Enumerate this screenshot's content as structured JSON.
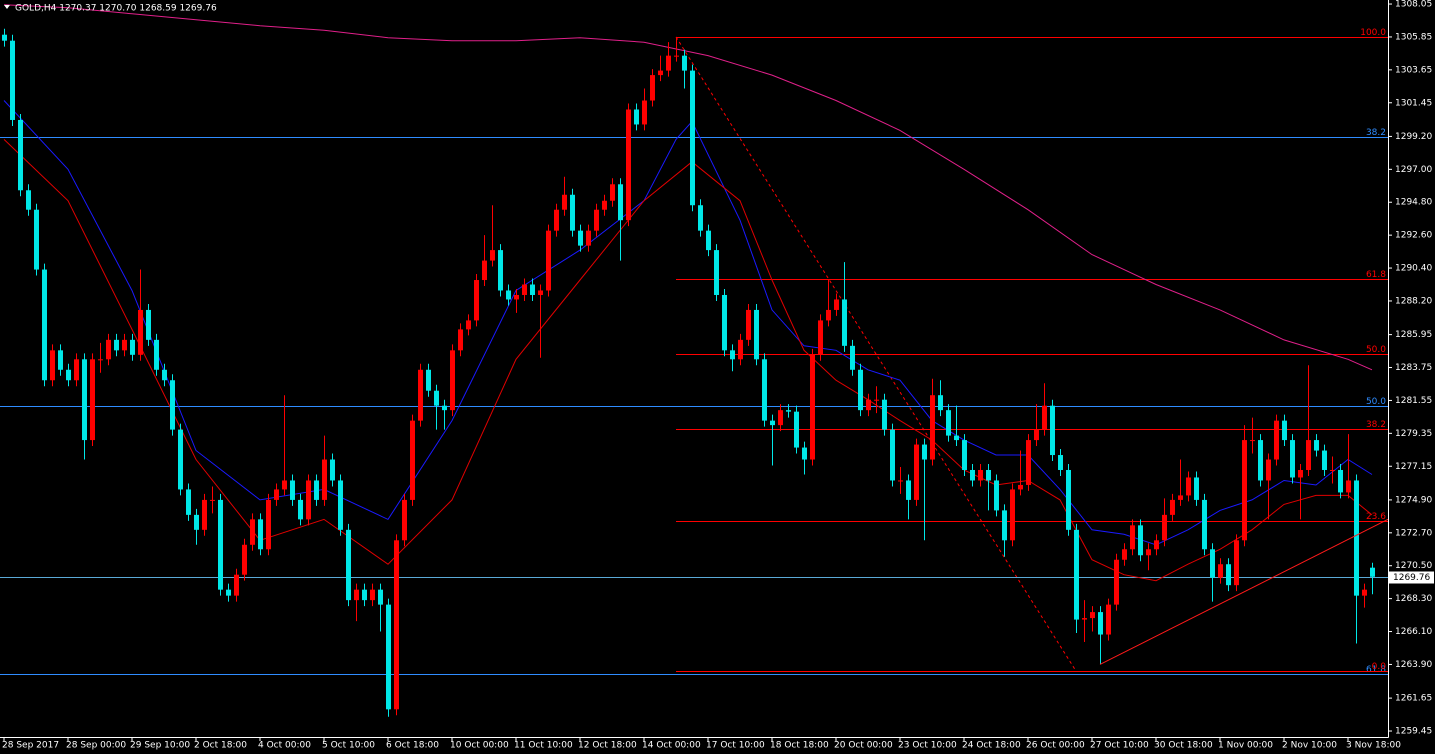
{
  "chart_data": {
    "type": "candlestick",
    "title": "GOLD,H4  1270.37 1270.70 1268.59 1269.76",
    "categories": [
      "28 Sep 2017",
      null,
      null,
      null,
      null,
      null,
      null,
      null,
      "28 Sep 00:00",
      null,
      null,
      null,
      null,
      null,
      null,
      null,
      "29 Sep 10:00",
      null,
      null,
      null,
      null,
      null,
      null,
      null,
      "2 Oct 18:00",
      null,
      null,
      null,
      null,
      null,
      null,
      null,
      "4 Oct 00:00",
      null,
      null,
      null,
      null,
      null,
      null,
      null,
      "5 Oct 10:00",
      null,
      null,
      null,
      null,
      null,
      null,
      null,
      "6 Oct 18:00",
      null,
      null,
      null,
      null,
      null,
      null,
      null,
      "10 Oct 00:00",
      null,
      null,
      null,
      null,
      null,
      null,
      null,
      "11 Oct 10:00",
      null,
      null,
      null,
      null,
      null,
      null,
      null,
      "12 Oct 18:00",
      null,
      null,
      null,
      null,
      null,
      null,
      null,
      "14 Oct 00:00",
      null,
      null,
      null,
      null,
      null,
      null,
      null,
      "17 Oct 10:00",
      null,
      null,
      null,
      null,
      null,
      null,
      null,
      "18 Oct 18:00",
      null,
      null,
      null,
      null,
      null,
      null,
      null,
      "20 Oct 00:00",
      null,
      null,
      null,
      null,
      null,
      null,
      null,
      "23 Oct 10:00",
      null,
      null,
      null,
      null,
      null,
      null,
      null,
      "24 Oct 18:00",
      null,
      null,
      null,
      null,
      null,
      null,
      null,
      "26 Oct 00:00",
      null,
      null,
      null,
      null,
      null,
      null,
      null,
      "27 Oct 10:00",
      null,
      null,
      null,
      null,
      null,
      null,
      null,
      "30 Oct 18:00",
      null,
      null,
      null,
      null,
      null,
      null,
      null,
      "1 Nov 00:00",
      null,
      null,
      null,
      null,
      null,
      null,
      null,
      "2 Nov 10:00",
      null,
      null,
      null,
      null,
      null,
      null,
      null,
      "3 Nov 18:00",
      null,
      null,
      null
    ],
    "open": [
      1306.0,
      1305.6,
      1300.3,
      1295.6,
      1294.3,
      1290.3,
      1282.9,
      1284.9,
      1283.6,
      1282.9,
      1284.3,
      1278.9,
      1284.3,
      1284.3,
      1285.6,
      1284.9,
      1285.6,
      1284.6,
      1287.6,
      1285.6,
      1283.6,
      1282.9,
      1279.6,
      1275.6,
      1273.9,
      1272.9,
      1274.9,
      1274.9,
      1268.9,
      1268.5,
      1269.9,
      1271.9,
      1273.6,
      1271.6,
      1274.9,
      1275.6,
      1276.2,
      1274.9,
      1273.6,
      1276.2,
      1274.9,
      1277.6,
      1276.2,
      1272.9,
      1268.2,
      1268.9,
      1268.2,
      1268.9,
      1267.9,
      1260.9,
      1272.2,
      1274.9,
      1280.2,
      1283.6,
      1282.2,
      1281.2,
      1280.9,
      1284.9,
      1286.3,
      1286.9,
      1289.6,
      1290.9,
      1291.6,
      1288.9,
      1288.3,
      1288.6,
      1289.3,
      1288.6,
      1288.9,
      1292.9,
      1294.3,
      1295.3,
      1292.9,
      1291.9,
      1292.9,
      1294.3,
      1294.9,
      1296.0,
      1293.6,
      1301.0,
      1300.0,
      1301.6,
      1303.3,
      1303.6,
      1304.6,
      1304.6,
      1303.6,
      1294.6,
      1292.9,
      1291.6,
      1288.6,
      1284.9,
      1284.3,
      1285.6,
      1287.6,
      1284.3,
      1280.2,
      1279.9,
      1280.9,
      1280.8,
      1278.4,
      1277.6,
      1284.6,
      1286.9,
      1287.6,
      1288.3,
      1285.2,
      1283.6,
      1280.9,
      1281.6,
      1281.6,
      1279.6,
      1276.2,
      1276.2,
      1274.9,
      1278.6,
      1277.6,
      1281.9,
      1280.9,
      1279.2,
      1278.9,
      1276.9,
      1276.2,
      1276.9,
      1276.2,
      1274.2,
      1272.2,
      1275.6,
      1275.9,
      1278.9,
      1279.6,
      1281.2,
      1277.9,
      1276.9,
      1272.9,
      1266.9,
      1267.0,
      1267.4,
      1265.9,
      1267.9,
      1270.9,
      1271.6,
      1273.2,
      1271.2,
      1271.6,
      1272.2,
      1273.9,
      1274.9,
      1275.2,
      1276.4,
      1274.9,
      1271.6,
      1269.7,
      1270.6,
      1269.2,
      1272.2,
      1278.9,
      1278.9,
      1276.2,
      1277.6,
      1280.2,
      1278.9,
      1276.4,
      1276.9,
      1278.9,
      1278.2,
      1276.9,
      1276.9,
      1275.4,
      1276.2,
      1268.5,
      1270.37
    ],
    "high": [
      1306.4,
      1306.0,
      1300.7,
      1296.0,
      1294.7,
      1290.7,
      1285.3,
      1285.3,
      1284.0,
      1284.7,
      1284.7,
      1284.7,
      1285.4,
      1286.0,
      1286.0,
      1286.0,
      1286.0,
      1290.3,
      1288.0,
      1286.0,
      1284.0,
      1283.3,
      1280.0,
      1276.0,
      1274.3,
      1275.3,
      1275.8,
      1275.3,
      1269.3,
      1270.3,
      1272.3,
      1274.0,
      1274.0,
      1275.3,
      1276.0,
      1281.9,
      1276.6,
      1275.3,
      1276.6,
      1276.6,
      1279.2,
      1278.0,
      1276.6,
      1273.3,
      1269.3,
      1269.3,
      1269.3,
      1269.3,
      1268.3,
      1272.6,
      1275.3,
      1280.6,
      1284.0,
      1284.0,
      1282.6,
      1281.6,
      1285.3,
      1286.7,
      1287.3,
      1290.0,
      1292.6,
      1294.6,
      1292.0,
      1289.3,
      1289.0,
      1289.7,
      1289.7,
      1289.3,
      1293.3,
      1294.7,
      1296.5,
      1295.7,
      1293.3,
      1293.3,
      1294.7,
      1295.3,
      1296.4,
      1296.4,
      1301.4,
      1301.4,
      1302.4,
      1303.7,
      1304.6,
      1305.5,
      1305.8,
      1305.0,
      1304.0,
      1295.0,
      1293.3,
      1292.0,
      1289.0,
      1285.3,
      1286.0,
      1288.0,
      1288.0,
      1284.7,
      1280.6,
      1281.3,
      1281.3,
      1281.2,
      1278.8,
      1285.0,
      1287.3,
      1289.6,
      1288.7,
      1290.8,
      1285.6,
      1284.0,
      1282.0,
      1282.5,
      1282.0,
      1280.0,
      1277.1,
      1276.6,
      1279.0,
      1279.0,
      1283.0,
      1282.9,
      1281.3,
      1281.2,
      1279.3,
      1277.3,
      1277.3,
      1277.3,
      1276.6,
      1274.6,
      1276.0,
      1278.2,
      1279.3,
      1281.3,
      1282.7,
      1281.6,
      1278.3,
      1277.3,
      1273.3,
      1268.2,
      1267.8,
      1267.8,
      1268.3,
      1271.3,
      1272.0,
      1273.6,
      1273.6,
      1272.0,
      1272.6,
      1275.0,
      1275.3,
      1277.6,
      1276.8,
      1276.8,
      1275.3,
      1272.0,
      1271.0,
      1271.0,
      1272.6,
      1279.9,
      1280.4,
      1279.3,
      1278.0,
      1280.6,
      1280.6,
      1279.3,
      1277.3,
      1283.9,
      1279.3,
      1278.6,
      1277.8,
      1277.3,
      1279.3,
      1276.6,
      1269.3,
      1270.7
    ],
    "low": [
      1305.2,
      1299.9,
      1295.2,
      1293.9,
      1289.9,
      1282.5,
      1282.5,
      1283.2,
      1282.5,
      1282.5,
      1277.6,
      1278.5,
      1283.4,
      1283.9,
      1284.5,
      1284.5,
      1284.2,
      1284.2,
      1285.2,
      1283.2,
      1282.5,
      1279.2,
      1275.2,
      1273.5,
      1271.9,
      1272.5,
      1274.0,
      1268.5,
      1268.1,
      1268.1,
      1269.5,
      1271.5,
      1271.2,
      1271.2,
      1274.5,
      1275.2,
      1274.5,
      1273.2,
      1273.2,
      1274.5,
      1274.5,
      1275.8,
      1272.5,
      1267.8,
      1266.8,
      1267.8,
      1267.8,
      1266.1,
      1260.4,
      1260.5,
      1271.8,
      1274.5,
      1279.8,
      1281.8,
      1279.6,
      1279.6,
      1280.5,
      1284.5,
      1285.9,
      1286.5,
      1289.2,
      1290.5,
      1288.5,
      1287.9,
      1287.4,
      1288.2,
      1288.2,
      1284.4,
      1288.5,
      1292.5,
      1293.9,
      1292.5,
      1291.5,
      1291.5,
      1292.5,
      1293.9,
      1294.5,
      1290.9,
      1293.2,
      1299.6,
      1299.6,
      1301.2,
      1302.9,
      1303.2,
      1304.2,
      1302.4,
      1294.2,
      1292.5,
      1291.2,
      1288.2,
      1284.5,
      1283.5,
      1283.9,
      1285.2,
      1283.9,
      1279.8,
      1277.2,
      1279.5,
      1280.4,
      1278.0,
      1276.6,
      1277.2,
      1284.2,
      1286.5,
      1287.2,
      1284.8,
      1283.2,
      1280.5,
      1280.5,
      1280.7,
      1279.2,
      1275.8,
      1275.3,
      1273.6,
      1274.5,
      1272.2,
      1277.2,
      1280.5,
      1278.8,
      1278.5,
      1276.5,
      1275.8,
      1275.8,
      1274.2,
      1273.8,
      1271.1,
      1271.8,
      1275.2,
      1275.5,
      1278.5,
      1279.2,
      1277.5,
      1276.5,
      1272.5,
      1266.0,
      1265.4,
      1266.1,
      1263.9,
      1265.5,
      1267.5,
      1270.5,
      1271.2,
      1270.8,
      1270.2,
      1271.2,
      1271.8,
      1273.5,
      1274.5,
      1274.8,
      1274.5,
      1271.2,
      1268.1,
      1269.3,
      1268.8,
      1268.8,
      1271.8,
      1278.0,
      1275.8,
      1273.6,
      1277.2,
      1278.5,
      1276.0,
      1273.6,
      1276.5,
      1277.8,
      1276.5,
      1276.0,
      1275.0,
      1275.0,
      1265.3,
      1267.7,
      1268.59
    ],
    "close": [
      1305.6,
      1300.3,
      1295.6,
      1294.3,
      1290.3,
      1282.9,
      1284.9,
      1283.6,
      1282.9,
      1284.3,
      1278.9,
      1284.3,
      1284.3,
      1285.6,
      1284.9,
      1285.6,
      1284.6,
      1287.6,
      1285.6,
      1283.6,
      1282.9,
      1279.6,
      1275.6,
      1273.9,
      1272.9,
      1274.9,
      1274.9,
      1268.9,
      1268.5,
      1269.9,
      1271.9,
      1273.6,
      1271.6,
      1274.9,
      1275.6,
      1276.2,
      1274.9,
      1273.6,
      1276.2,
      1274.9,
      1277.6,
      1276.2,
      1272.9,
      1268.2,
      1268.9,
      1268.2,
      1268.9,
      1267.9,
      1260.9,
      1272.2,
      1274.9,
      1280.2,
      1283.6,
      1282.2,
      1281.2,
      1280.9,
      1284.9,
      1286.3,
      1286.9,
      1289.6,
      1290.9,
      1291.6,
      1288.9,
      1288.3,
      1288.6,
      1289.3,
      1288.6,
      1288.9,
      1292.9,
      1294.3,
      1295.3,
      1292.9,
      1291.9,
      1292.9,
      1294.3,
      1294.9,
      1296.0,
      1293.6,
      1301.0,
      1300.0,
      1301.6,
      1303.3,
      1303.6,
      1304.6,
      1304.6,
      1303.6,
      1294.6,
      1292.9,
      1291.6,
      1288.6,
      1284.9,
      1284.3,
      1285.6,
      1287.6,
      1284.3,
      1280.2,
      1279.9,
      1280.9,
      1280.8,
      1278.4,
      1277.6,
      1284.6,
      1286.9,
      1287.6,
      1288.3,
      1285.2,
      1283.6,
      1280.9,
      1281.6,
      1281.6,
      1279.6,
      1276.2,
      1276.2,
      1274.9,
      1278.6,
      1277.6,
      1281.9,
      1280.9,
      1279.2,
      1278.9,
      1276.9,
      1276.2,
      1276.9,
      1276.2,
      1274.2,
      1272.2,
      1275.6,
      1275.9,
      1278.9,
      1279.6,
      1281.2,
      1277.9,
      1276.9,
      1272.9,
      1266.9,
      1267.0,
      1267.4,
      1265.9,
      1267.9,
      1270.9,
      1271.6,
      1273.2,
      1271.2,
      1271.6,
      1272.2,
      1273.9,
      1274.9,
      1275.2,
      1276.4,
      1274.9,
      1271.6,
      1269.7,
      1270.6,
      1269.2,
      1272.2,
      1278.9,
      1278.9,
      1276.2,
      1277.6,
      1280.2,
      1278.9,
      1276.4,
      1276.9,
      1278.9,
      1278.2,
      1276.9,
      1276.9,
      1275.4,
      1276.2,
      1268.5,
      1268.9,
      1269.76
    ],
    "up_color": "#ff0000",
    "down_color": "#00e8e8",
    "ylim": [
      1259.05,
      1308.32
    ],
    "yticks": [
      1308.05,
      1305.85,
      1303.65,
      1301.45,
      {
        "value": 1299.2,
        "label": "1299.20"
      },
      {
        "value": 1297,
        "label": "1297.00"
      },
      {
        "value": 1294.8,
        "label": "1294.80"
      },
      {
        "value": 1292.6,
        "label": "1292.60"
      },
      {
        "value": 1290.4,
        "label": "1290.40"
      },
      {
        "value": 1288.2,
        "label": "1288.20"
      },
      1285.95,
      1283.75,
      1281.55,
      1279.35,
      1277.15,
      {
        "value": 1274.9,
        "label": "1274.90"
      },
      {
        "value": 1272.7,
        "label": "1272.70"
      },
      {
        "value": 1270.5,
        "label": "1270.50"
      },
      {
        "value": 1268.3,
        "label": "1268.30"
      },
      {
        "value": 1266.1,
        "label": "1266.10"
      },
      {
        "value": 1263.9,
        "label": "1263.90"
      },
      1261.65,
      1259.45
    ],
    "lines": [
      {
        "color": "#1a1aff",
        "x": [
          0,
          8,
          16,
          24,
          32,
          40,
          48,
          56,
          64,
          72,
          80,
          84,
          86,
          92,
          96,
          100,
          104,
          108,
          112,
          116,
          120,
          124,
          128,
          132,
          136,
          140,
          144,
          148,
          152,
          156,
          160,
          164,
          168,
          171
        ],
        "values": [
          1301.6,
          1297.0,
          1288.9,
          1278.2,
          1274.9,
          1275.6,
          1273.6,
          1280.2,
          1288.9,
          1291.6,
          1294.9,
          1299.0,
          1300.2,
          1293.6,
          1287.6,
          1285.2,
          1284.9,
          1283.6,
          1282.9,
          1280.2,
          1278.9,
          1277.9,
          1277.9,
          1275.6,
          1272.9,
          1272.6,
          1271.9,
          1272.9,
          1274.2,
          1274.9,
          1276.2,
          1275.9,
          1277.6,
          1276.6
        ]
      },
      {
        "color": "#e00000",
        "x": [
          0,
          8,
          16,
          24,
          32,
          40,
          48,
          56,
          64,
          72,
          80,
          86,
          92,
          96,
          100,
          104,
          108,
          112,
          116,
          120,
          124,
          128,
          132,
          136,
          140,
          144,
          148,
          152,
          156,
          160,
          164,
          168,
          171
        ],
        "values": [
          1299.0,
          1294.9,
          1286.3,
          1277.6,
          1272.2,
          1273.6,
          1270.6,
          1274.9,
          1284.3,
          1289.6,
          1294.9,
          1297.5,
          1294.9,
          1289.6,
          1284.9,
          1282.9,
          1281.6,
          1280.2,
          1278.9,
          1276.9,
          1275.9,
          1276.2,
          1274.9,
          1270.9,
          1269.9,
          1269.5,
          1270.6,
          1271.6,
          1272.9,
          1274.6,
          1275.2,
          1275.2,
          1273.9
        ]
      },
      {
        "color": "#e0208a",
        "x": [
          0,
          8,
          16,
          24,
          32,
          40,
          48,
          56,
          64,
          72,
          80,
          88,
          96,
          104,
          112,
          120,
          128,
          136,
          144,
          152,
          160,
          168,
          171
        ],
        "values": [
          1308.0,
          1307.8,
          1307.4,
          1307.0,
          1306.6,
          1306.3,
          1305.8,
          1305.6,
          1305.6,
          1305.8,
          1305.5,
          1304.6,
          1303.3,
          1301.6,
          1299.6,
          1297.0,
          1294.3,
          1291.3,
          1289.3,
          1287.6,
          1285.6,
          1284.3,
          1283.6
        ]
      }
    ],
    "fib_red": {
      "color": "#ff0000",
      "x": [
        84,
        134
      ],
      "values": [
        1305.85,
        1263.46
      ],
      "levels": [
        {
          "label": "100.0",
          "value": 1305.85
        },
        {
          "label": "61.8",
          "value": 1289.66
        },
        {
          "label": "50.0",
          "value": 1284.66
        },
        {
          "label": "38.2",
          "value": 1279.65
        },
        {
          "label": "23.6",
          "value": 1273.46
        },
        {
          "label": "0.0",
          "value": 1263.46
        }
      ]
    },
    "fib_blue": {
      "color": "#2f8cff",
      "levels": [
        {
          "label": "38.2",
          "value": 1299.16
        },
        {
          "label": "50.0",
          "value": 1281.18
        },
        {
          "label": "61.8",
          "value": 1263.26
        }
      ]
    },
    "trendline": {
      "color": "#ff1a1a",
      "x": [
        137,
        173
      ],
      "values": [
        1263.9,
        1273.6
      ]
    },
    "bid_line_color": "#5aa9d6"
  }
}
